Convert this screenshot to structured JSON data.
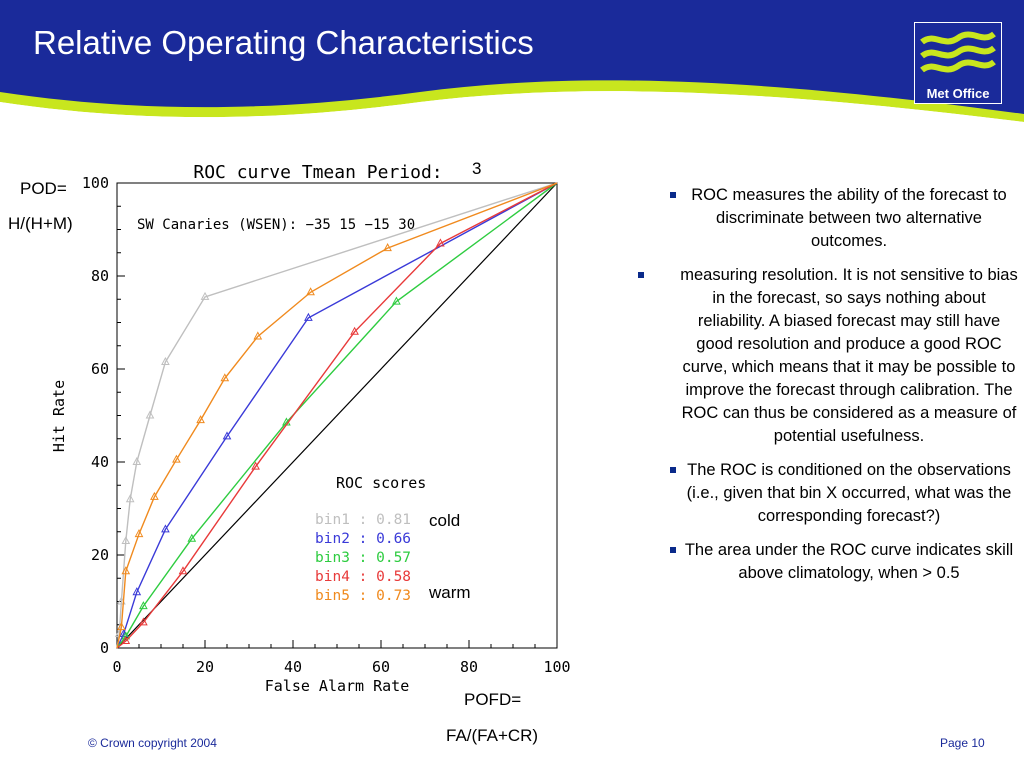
{
  "slide": {
    "title": "Relative Operating Characteristics",
    "logo_text": "Met Office",
    "copyright": "© Crown copyright 2004",
    "page": "Page 10"
  },
  "annotations": {
    "pod_line1": "POD=",
    "pod_line2": "H/(H+M)",
    "period_num": "3",
    "cold": "cold",
    "warm": "warm",
    "pofd_line1": "POFD=",
    "pofd_line2": "FA/(FA+CR)"
  },
  "bullets": [
    "ROC measures the ability of the forecast to discriminate between two alternative outcomes.",
    "measuring resolution. It is not sensitive to bias in the forecast, so says nothing about reliability. A biased forecast may still have good resolution and produce a good ROC curve, which means that it may be possible to improve the forecast through calibration. The ROC can thus be considered as a measure of potential usefulness.",
    "The ROC is conditioned on the observations (i.e., given that bin X occurred, what was the corresponding forecast?)",
    "The area under the ROC curve indicates skill above climatology, when > 0.5"
  ],
  "colors": {
    "header_blue": "#1a2a9a",
    "header_green": "#c8e61e",
    "bin1": "#bfbfbf",
    "bin2": "#3a3ad8",
    "bin3": "#2ecc40",
    "bin4": "#e83a3a",
    "bin5": "#f08a1e"
  },
  "chart_data": {
    "type": "line",
    "title": "ROC curve Tmean Period:",
    "subtitle": "SW Canaries (WSEN): −35 15 −15 30",
    "xlabel": "False Alarm Rate",
    "ylabel": "Hit Rate",
    "xlim": [
      0,
      100
    ],
    "ylim": [
      0,
      100
    ],
    "x_ticks": [
      "0",
      "20",
      "40",
      "60",
      "80",
      "100"
    ],
    "y_ticks": [
      "0",
      "20",
      "40",
      "60",
      "80",
      "100"
    ],
    "scores_title": "ROC scores",
    "series": [
      {
        "name": "bin1",
        "score_label": "bin1 : 0.81",
        "color": "#bfbfbf",
        "x": [
          0,
          0.5,
          1,
          2,
          3,
          4.5,
          7.5,
          11,
          20,
          100
        ],
        "y": [
          0,
          3,
          10,
          23,
          32,
          40,
          50,
          61.5,
          75.5,
          100
        ]
      },
      {
        "name": "bin2",
        "score_label": "bin2 : 0.66",
        "color": "#3a3ad8",
        "x": [
          0,
          1.5,
          4.5,
          11,
          25,
          43.5,
          100
        ],
        "y": [
          0,
          3,
          12,
          25.5,
          45.5,
          71,
          100
        ]
      },
      {
        "name": "bin3",
        "score_label": "bin3 : 0.57",
        "color": "#2ecc40",
        "x": [
          0,
          2,
          6,
          17,
          38.5,
          63.5,
          100
        ],
        "y": [
          0,
          2.5,
          9,
          23.5,
          48.5,
          74.5,
          100
        ]
      },
      {
        "name": "bin4",
        "score_label": "bin4 : 0.58",
        "color": "#e83a3a",
        "x": [
          0,
          2,
          6,
          15,
          31.5,
          54,
          73.5,
          100
        ],
        "y": [
          0,
          1.5,
          5.5,
          16.5,
          39,
          68,
          87,
          100
        ]
      },
      {
        "name": "bin5",
        "score_label": "bin5 : 0.73",
        "color": "#f08a1e",
        "x": [
          0,
          1,
          2,
          5,
          8.5,
          13.5,
          19,
          24.5,
          32,
          44,
          61.5,
          100
        ],
        "y": [
          0,
          4.5,
          16.5,
          24.5,
          32.5,
          40.5,
          49,
          58,
          67,
          76.5,
          86,
          100
        ]
      }
    ]
  }
}
